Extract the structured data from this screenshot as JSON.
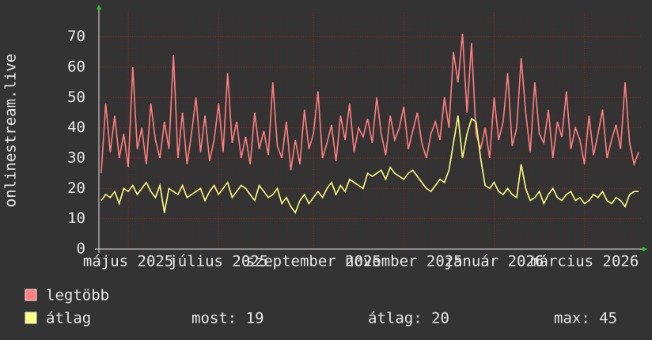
{
  "chart_data": {
    "type": "line",
    "y_label": "onlinestream.live",
    "categories": [
      null,
      null,
      null,
      null,
      null,
      null,
      "május 2025",
      null,
      null,
      null,
      null,
      null,
      null,
      null,
      null,
      null,
      null,
      null,
      null,
      null,
      null,
      null,
      null,
      null,
      null,
      null,
      "július 2025",
      null,
      null,
      null,
      null,
      null,
      null,
      null,
      null,
      null,
      null,
      null,
      null,
      null,
      null,
      null,
      null,
      null,
      null,
      null,
      null,
      "szeptember 2025",
      null,
      null,
      null,
      null,
      null,
      null,
      null,
      null,
      null,
      null,
      null,
      null,
      null,
      null,
      null,
      null,
      null,
      null,
      null,
      "november 2025",
      null,
      null,
      null,
      null,
      null,
      null,
      null,
      null,
      null,
      null,
      null,
      null,
      null,
      null,
      null,
      null,
      null,
      null,
      null,
      "január 2026",
      null,
      null,
      null,
      null,
      null,
      null,
      null,
      null,
      null,
      null,
      null,
      null,
      null,
      null,
      null,
      null,
      null,
      null,
      null,
      "március 2026",
      null,
      null,
      null,
      null,
      null,
      null,
      null,
      null,
      null,
      null,
      null,
      null
    ],
    "series": [
      {
        "name": "legtöbb",
        "color": "#ff7f7f",
        "values": [
          25,
          48,
          32,
          44,
          30,
          38,
          27,
          60,
          33,
          40,
          28,
          48,
          36,
          30,
          42,
          33,
          64,
          30,
          45,
          28,
          38,
          50,
          32,
          44,
          29,
          36,
          48,
          32,
          58,
          35,
          42,
          30,
          37,
          28,
          45,
          33,
          39,
          31,
          55,
          34,
          30,
          42,
          26,
          36,
          28,
          46,
          33,
          38,
          52,
          30,
          35,
          41,
          29,
          44,
          36,
          48,
          32,
          40,
          37,
          43,
          35,
          50,
          38,
          31,
          44,
          36,
          40,
          47,
          33,
          39,
          45,
          35,
          30,
          38,
          42,
          36,
          50,
          40,
          65,
          55,
          71,
          45,
          68,
          38,
          33,
          40,
          30,
          50,
          36,
          42,
          58,
          34,
          40,
          63,
          45,
          32,
          55,
          38,
          35,
          46,
          30,
          42,
          37,
          52,
          33,
          40,
          36,
          28,
          44,
          31,
          38,
          46,
          30,
          36,
          41,
          33,
          55,
          35,
          28,
          32
        ]
      },
      {
        "name": "átlag",
        "color": "#ffff80",
        "values": [
          16,
          18,
          17,
          19,
          15,
          20,
          19,
          21,
          18,
          20,
          22,
          19,
          17,
          21,
          12,
          20,
          19,
          18,
          21,
          17,
          18,
          19,
          20,
          16,
          19,
          21,
          18,
          20,
          22,
          17,
          19,
          21,
          20,
          18,
          16,
          21,
          19,
          17,
          18,
          20,
          15,
          17,
          14,
          12,
          16,
          18,
          15,
          17,
          19,
          17,
          20,
          22,
          18,
          21,
          19,
          23,
          22,
          21,
          20,
          25,
          24,
          25,
          26,
          23,
          27,
          25,
          24,
          23,
          25,
          26,
          24,
          22,
          20,
          19,
          21,
          23,
          22,
          26,
          35,
          44,
          30,
          38,
          43,
          42,
          30,
          21,
          20,
          22,
          19,
          18,
          20,
          18,
          17,
          28,
          20,
          16,
          17,
          19,
          15,
          18,
          20,
          17,
          16,
          18,
          19,
          16,
          17,
          15,
          16,
          18,
          17,
          19,
          16,
          15,
          17,
          16,
          14,
          18,
          19,
          19
        ]
      }
    ],
    "summary": [
      "most: 19",
      "átlag: 20",
      "max: 45"
    ],
    "ylim": [
      0,
      78
    ],
    "yticks": [
      0,
      10,
      20,
      30,
      40,
      50,
      60,
      70
    ],
    "grid": true
  }
}
